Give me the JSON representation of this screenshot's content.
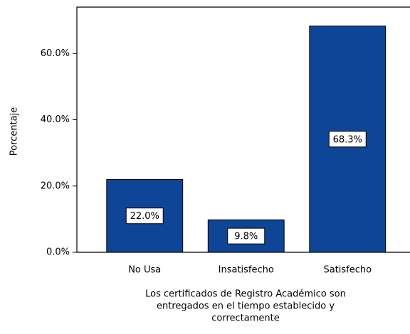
{
  "chart_data": {
    "type": "bar",
    "categories": [
      "No Usa",
      "Insatisfecho",
      "Satisfecho"
    ],
    "values": [
      22.0,
      9.8,
      68.3
    ],
    "value_labels": [
      "22.0%",
      "9.8%",
      "68.3%"
    ],
    "color": "#0f4596",
    "y_label": "Porcentaje",
    "x_label": [
      "Los certificados de Registro Académico son",
      "entregados en el tiempo establecido y",
      "correctamente"
    ],
    "ylim": [
      0,
      74
    ],
    "yticks": [
      {
        "value": 0,
        "label": "0.0%"
      },
      {
        "value": 20,
        "label": "20.0%"
      },
      {
        "value": 40,
        "label": "40.0%"
      },
      {
        "value": 60,
        "label": "60.0%"
      }
    ],
    "grid": false
  }
}
